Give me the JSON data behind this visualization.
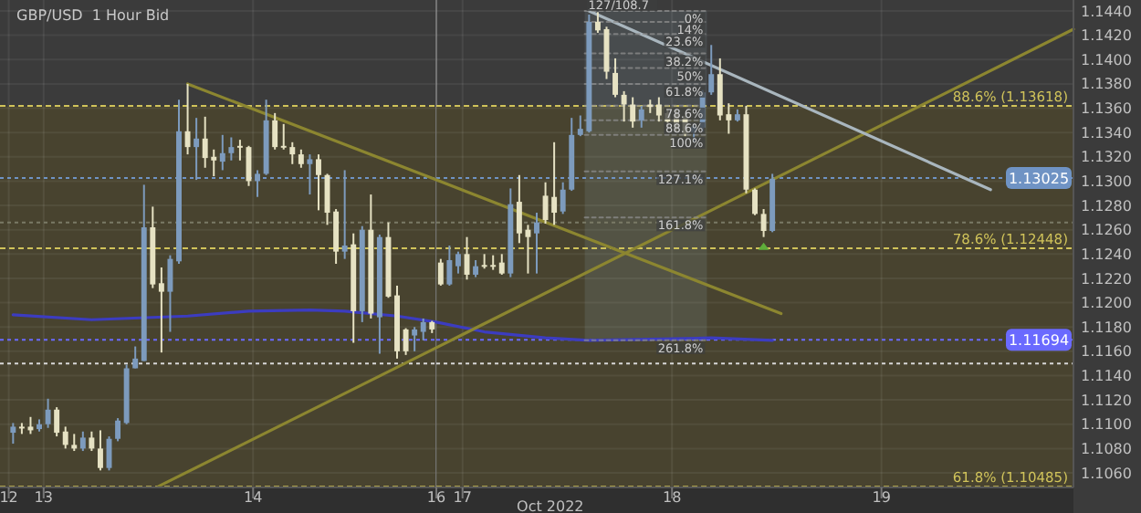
{
  "chart_data": [
    {
      "type": "candlestick",
      "title": "GBP/USD  1 Hour Bid",
      "x": [
        "2022-10-12T20:30",
        "2022-10-12T21:30",
        "2022-10-12T22:30",
        "2022-10-12T23:30",
        "2022-10-13T00:30",
        "2022-10-13T01:30",
        "2022-10-13T02:30",
        "2022-10-13T03:30",
        "2022-10-13T04:30",
        "2022-10-13T05:30",
        "2022-10-13T06:30",
        "2022-10-13T07:30",
        "2022-10-13T08:30",
        "2022-10-13T09:30",
        "2022-10-13T10:30",
        "2022-10-13T11:30",
        "2022-10-13T12:30",
        "2022-10-13T13:30",
        "2022-10-13T14:30",
        "2022-10-13T15:30",
        "2022-10-13T16:30",
        "2022-10-13T17:30",
        "2022-10-13T18:30",
        "2022-10-13T19:30",
        "2022-10-13T20:30",
        "2022-10-13T21:30",
        "2022-10-13T22:30",
        "2022-10-13T23:30",
        "2022-10-14T00:30",
        "2022-10-14T01:30",
        "2022-10-14T02:30",
        "2022-10-14T03:30",
        "2022-10-14T04:30",
        "2022-10-14T05:30",
        "2022-10-14T06:30",
        "2022-10-14T07:30",
        "2022-10-14T08:30",
        "2022-10-14T09:30",
        "2022-10-14T10:30",
        "2022-10-14T11:30",
        "2022-10-14T12:30",
        "2022-10-14T13:30",
        "2022-10-14T14:30",
        "2022-10-14T15:30",
        "2022-10-14T16:30",
        "2022-10-14T17:30",
        "2022-10-14T18:30",
        "2022-10-14T19:30",
        "2022-10-14T20:30"
      ],
      "ohlc": [
        [
          1.1093,
          1.1101,
          1.1084,
          1.1098
        ],
        [
          1.1098,
          1.1101,
          1.1092,
          1.1097
        ],
        [
          1.1098,
          1.1106,
          1.1092,
          1.1095
        ],
        [
          1.1096,
          1.1104,
          1.1094,
          1.11
        ],
        [
          1.11,
          1.1121,
          1.1097,
          1.1112
        ],
        [
          1.1112,
          1.1114,
          1.109,
          1.1093
        ],
        [
          1.1094,
          1.1098,
          1.108,
          1.1083
        ],
        [
          1.1083,
          1.1092,
          1.1078,
          1.108
        ],
        [
          1.108,
          1.1094,
          1.1078,
          1.1089
        ],
        [
          1.1089,
          1.1094,
          1.1078,
          1.108
        ],
        [
          1.108,
          1.1095,
          1.1062,
          1.1064
        ],
        [
          1.1064,
          1.109,
          1.1062,
          1.1088
        ],
        [
          1.1088,
          1.1105,
          1.1086,
          1.1103
        ],
        [
          1.1101,
          1.1149,
          1.11,
          1.1146
        ],
        [
          1.1146,
          1.1164,
          1.1146,
          1.1154
        ],
        [
          1.1152,
          1.1297,
          1.1152,
          1.1262
        ],
        [
          1.1262,
          1.1279,
          1.1212,
          1.1215
        ],
        [
          1.1216,
          1.1229,
          1.1159,
          1.1209
        ],
        [
          1.1209,
          1.1239,
          1.1176,
          1.1236
        ],
        [
          1.1234,
          1.1367,
          1.1232,
          1.1341
        ],
        [
          1.1341,
          1.138,
          1.1322,
          1.1328
        ],
        [
          1.1328,
          1.1352,
          1.1301,
          1.1335
        ],
        [
          1.1335,
          1.1353,
          1.1311,
          1.1319
        ],
        [
          1.132,
          1.1326,
          1.1304,
          1.1317
        ],
        [
          1.1316,
          1.1338,
          1.1309,
          1.1323
        ],
        [
          1.1323,
          1.1336,
          1.1317,
          1.1328
        ],
        [
          1.1329,
          1.1334,
          1.1317,
          1.1328
        ],
        [
          1.1328,
          1.1329,
          1.1296,
          1.13
        ],
        [
          1.13,
          1.1309,
          1.1287,
          1.1306
        ],
        [
          1.1306,
          1.1367,
          1.1305,
          1.135
        ],
        [
          1.135,
          1.1356,
          1.1326,
          1.1328
        ],
        [
          1.1329,
          1.1347,
          1.1326,
          1.1328
        ],
        [
          1.1328,
          1.1332,
          1.1314,
          1.1322
        ],
        [
          1.1322,
          1.1326,
          1.1311,
          1.1314
        ],
        [
          1.1314,
          1.1322,
          1.1289,
          1.1318
        ],
        [
          1.1318,
          1.1322,
          1.1276,
          1.1305
        ],
        [
          1.1305,
          1.1306,
          1.1264,
          1.1274
        ],
        [
          1.1275,
          1.1277,
          1.1232,
          1.1242
        ],
        [
          1.1242,
          1.1309,
          1.1236,
          1.1247
        ],
        [
          1.1248,
          1.1257,
          1.1167,
          1.1193
        ],
        [
          1.1193,
          1.1263,
          1.1184,
          1.126
        ],
        [
          1.126,
          1.1289,
          1.1187,
          1.1191
        ],
        [
          1.1188,
          1.1256,
          1.1158,
          1.1254
        ],
        [
          1.1254,
          1.1266,
          1.1204,
          1.1205
        ],
        [
          1.1206,
          1.1214,
          1.1154,
          1.116
        ],
        [
          1.1178,
          1.1179,
          1.1157,
          1.116
        ],
        [
          1.1173,
          1.118,
          1.116,
          1.1178
        ],
        [
          1.1176,
          1.1187,
          1.1169,
          1.1184
        ],
        [
          1.1184,
          1.1185,
          1.1175,
          1.1178
        ]
      ],
      "colors": [
        "#7d9bbd",
        "#e6e2c3",
        "#e6e2c3",
        "#7d9bbd",
        "#7d9bbd",
        "#e6e2c3",
        "#e6e2c3",
        "#e6e2c3",
        "#7d9bbd",
        "#e6e2c3",
        "#e6e2c3",
        "#7d9bbd",
        "#7d9bbd",
        "#7d9bbd",
        "#7d9bbd",
        "#7d9bbd",
        "#e6e2c3",
        "#e6e2c3",
        "#7d9bbd",
        "#7d9bbd",
        "#e6e2c3",
        "#7d9bbd",
        "#e6e2c3",
        "#e6e2c3",
        "#7d9bbd",
        "#7d9bbd",
        "#e6e2c3",
        "#e6e2c3",
        "#7d9bbd",
        "#7d9bbd",
        "#e6e2c3",
        "#e6e2c3",
        "#e6e2c3",
        "#e6e2c3",
        "#7d9bbd",
        "#e6e2c3",
        "#e6e2c3",
        "#e6e2c3",
        "#7d9bbd",
        "#e6e2c3",
        "#7d9bbd",
        "#e6e2c3",
        "#7d9bbd",
        "#e6e2c3",
        "#e6e2c3",
        "#e6e2c3",
        "#7d9bbd",
        "#7d9bbd",
        "#e6e2c3"
      ],
      "series": [
        {
          "type": "line",
          "color": "#3c3cc0",
          "x": [
            "2022-10-12T20:30",
            "2022-10-13T05:30",
            "2022-10-13T16:30",
            "2022-10-13T23:30",
            "2022-10-14T06:30",
            "2022-10-14T10:30",
            "2022-10-14T16:30",
            "2022-10-14T21:00"
          ],
          "values": [
            1.119,
            1.1186,
            1.1189,
            1.1193,
            1.1194,
            1.1193,
            1.1189,
            1.1184
          ]
        },
        {
          "type": "line",
          "color": "#8c8630",
          "x": [
            "2022-10-13T16:30",
            "2022-10-14T21:00"
          ],
          "values": [
            1.138,
            1.1301
          ]
        },
        {
          "type": "line",
          "color": "#8c8630",
          "x": [
            "2022-10-13T13:12",
            "2022-10-14T21:00"
          ],
          "values": [
            1.1049,
            1.1163
          ]
        }
      ],
      "xlim": [
        "2022-10-12T19:00",
        "2022-10-14T21:00"
      ],
      "xticks": [
        {
          "value": "2022-10-12T20:00",
          "label": "12"
        },
        {
          "value": "2022-10-13",
          "label": "13"
        },
        {
          "value": "2022-10-14",
          "label": "14"
        }
      ],
      "ylim": [
        1.1048,
        1.1449
      ],
      "yticks": [
        1.106,
        1.108,
        1.11,
        1.112,
        1.114,
        1.116,
        1.118,
        1.12,
        1.122,
        1.124,
        1.126,
        1.128,
        1.13,
        1.132,
        1.134,
        1.136,
        1.138,
        1.14,
        1.142,
        1.144
      ],
      "tick_labels": "x",
      "grid": true,
      "bands": [
        {
          "axis": "y",
          "from": 1.10485,
          "to": 1.13618,
          "color": "#48432f"
        }
      ],
      "ref_lines": [
        {
          "axis": "y",
          "value": 1.13618,
          "color": "#d0c35a",
          "line_style": "dashed"
        },
        {
          "axis": "y",
          "value": 1.12448,
          "color": "#d0c35a",
          "line_style": "dashed"
        },
        {
          "axis": "y",
          "value": 1.10485,
          "color": "#d0c35a",
          "line_style": "dashed"
        },
        {
          "axis": "y",
          "value": 1.13025,
          "color": "#6f93c4",
          "line_style": "dotted"
        },
        {
          "axis": "y",
          "value": 1.11694,
          "color": "#6a6aff",
          "line_style": "dotted"
        },
        {
          "axis": "y",
          "value": 1.1266,
          "color": "#7a7a66",
          "line_style": "dotted"
        },
        {
          "axis": "y",
          "value": 1.115,
          "color": "#d8d8d8",
          "line_style": "dotted"
        }
      ]
    },
    {
      "type": "candlestick",
      "xlabel": "Oct 2022",
      "x": [
        "2022-10-16T21:30",
        "2022-10-16T22:30",
        "2022-10-16T23:30",
        "2022-10-17T00:30",
        "2022-10-17T01:30",
        "2022-10-17T02:30",
        "2022-10-17T03:30",
        "2022-10-17T04:30",
        "2022-10-17T05:30",
        "2022-10-17T06:30",
        "2022-10-17T07:30",
        "2022-10-17T08:30",
        "2022-10-17T09:30",
        "2022-10-17T10:30",
        "2022-10-17T11:30",
        "2022-10-17T12:30",
        "2022-10-17T13:30",
        "2022-10-17T14:30",
        "2022-10-17T15:30",
        "2022-10-17T16:30",
        "2022-10-17T17:30",
        "2022-10-17T18:30",
        "2022-10-17T19:30",
        "2022-10-17T20:30",
        "2022-10-17T21:30",
        "2022-10-17T22:30",
        "2022-10-17T23:30",
        "2022-10-18T00:30",
        "2022-10-18T01:30",
        "2022-10-18T02:30",
        "2022-10-18T03:30",
        "2022-10-18T04:30",
        "2022-10-18T05:30",
        "2022-10-18T06:30",
        "2022-10-18T07:30",
        "2022-10-18T08:30",
        "2022-10-18T09:30",
        "2022-10-18T10:30",
        "2022-10-18T11:30"
      ],
      "ohlc": [
        [
          1.1233,
          1.1236,
          1.1214,
          1.1215
        ],
        [
          1.1215,
          1.1247,
          1.1214,
          1.1235
        ],
        [
          1.123,
          1.1242,
          1.1224,
          1.124
        ],
        [
          1.124,
          1.1254,
          1.1219,
          1.1223
        ],
        [
          1.1223,
          1.1235,
          1.1221,
          1.123
        ],
        [
          1.1231,
          1.124,
          1.1228,
          1.123
        ],
        [
          1.1231,
          1.1239,
          1.1227,
          1.123
        ],
        [
          1.1233,
          1.124,
          1.1223,
          1.1224
        ],
        [
          1.1224,
          1.1294,
          1.1221,
          1.1281
        ],
        [
          1.1283,
          1.1305,
          1.1249,
          1.1257
        ],
        [
          1.126,
          1.1264,
          1.1224,
          1.1254
        ],
        [
          1.1257,
          1.1274,
          1.1224,
          1.1266
        ],
        [
          1.1288,
          1.1299,
          1.1265,
          1.1268
        ],
        [
          1.1287,
          1.1332,
          1.1264,
          1.1274
        ],
        [
          1.1275,
          1.1299,
          1.1273,
          1.1293
        ],
        [
          1.1293,
          1.1352,
          1.1292,
          1.1338
        ],
        [
          1.1338,
          1.1354,
          1.1337,
          1.1343
        ],
        [
          1.1341,
          1.1437,
          1.134,
          1.1431
        ],
        [
          1.1431,
          1.1439,
          1.1422,
          1.1424
        ],
        [
          1.1425,
          1.1427,
          1.1384,
          1.139
        ],
        [
          1.1389,
          1.1401,
          1.1369,
          1.1371
        ],
        [
          1.1371,
          1.1374,
          1.1349,
          1.1363
        ],
        [
          1.1363,
          1.1369,
          1.1344,
          1.1349
        ],
        [
          1.135,
          1.1362,
          1.1344,
          1.1359
        ],
        [
          1.1363,
          1.1367,
          1.1356,
          1.1361
        ],
        [
          1.1363,
          1.1369,
          1.1349,
          1.1354
        ],
        [
          1.1356,
          1.1359,
          1.1344,
          1.1349
        ],
        [
          1.1355,
          1.1359,
          1.1341,
          1.1343
        ],
        [
          1.1352,
          1.1354,
          1.1337,
          1.1339
        ],
        [
          1.134,
          1.1347,
          1.1332,
          1.1345
        ],
        [
          1.1344,
          1.1375,
          1.1341,
          1.1373
        ],
        [
          1.1373,
          1.1412,
          1.1371,
          1.1388
        ],
        [
          1.1388,
          1.1401,
          1.135,
          1.1354
        ],
        [
          1.1355,
          1.1364,
          1.1339,
          1.135
        ],
        [
          1.135,
          1.1359,
          1.1349,
          1.1355
        ],
        [
          1.1355,
          1.1362,
          1.129,
          1.1293
        ],
        [
          1.1293,
          1.1294,
          1.1272,
          1.1273
        ],
        [
          1.1273,
          1.1277,
          1.1254,
          1.1259
        ],
        [
          1.1259,
          1.1306,
          1.1258,
          1.1302
        ]
      ],
      "colors": [
        "#e6e2c3",
        "#7d9bbd",
        "#7d9bbd",
        "#e6e2c3",
        "#7d9bbd",
        "#e6e2c3",
        "#e6e2c3",
        "#e6e2c3",
        "#7d9bbd",
        "#e6e2c3",
        "#e6e2c3",
        "#7d9bbd",
        "#e6e2c3",
        "#e6e2c3",
        "#7d9bbd",
        "#7d9bbd",
        "#7d9bbd",
        "#7d9bbd",
        "#e6e2c3",
        "#e6e2c3",
        "#e6e2c3",
        "#e6e2c3",
        "#e6e2c3",
        "#7d9bbd",
        "#e6e2c3",
        "#e6e2c3",
        "#e6e2c3",
        "#e6e2c3",
        "#e6e2c3",
        "#7d9bbd",
        "#7d9bbd",
        "#7d9bbd",
        "#e6e2c3",
        "#e6e2c3",
        "#7d9bbd",
        "#e6e2c3",
        "#e6e2c3",
        "#e6e2c3",
        "#7d9bbd"
      ],
      "series": [
        {
          "type": "line",
          "color": "#3c3cc0",
          "x": [
            "2022-10-16T21:00",
            "2022-10-17T02:30",
            "2022-10-17T09:30",
            "2022-10-17T14:30",
            "2022-10-17T21:30",
            "2022-10-18T04:30",
            "2022-10-18T11:30"
          ],
          "values": [
            1.1184,
            1.1176,
            1.1171,
            1.1169,
            1.117,
            1.1171,
            1.1169
          ]
        },
        {
          "type": "line",
          "color": "#8c8630",
          "x": [
            "2022-10-16T21:00",
            "2022-10-18T12:30"
          ],
          "values": [
            1.1301,
            1.1191
          ]
        },
        {
          "type": "line",
          "color": "#8c8630",
          "x": [
            "2022-10-16T21:00",
            "2022-10-19T22:00"
          ],
          "values": [
            1.1163,
            1.1425
          ]
        },
        {
          "type": "line",
          "color": "#a9b6be",
          "x": [
            "2022-10-17T14:30",
            "2022-10-19T12:30"
          ],
          "values": [
            1.144,
            1.1293
          ]
        },
        {
          "type": "line",
          "color": "#8e8e8e",
          "line_style": "dotted",
          "x": [
            "2022-10-17T14:00",
            "2022-10-18T04:00"
          ],
          "values": [
            1.144,
            1.144
          ]
        },
        {
          "type": "line",
          "color": "#8e8e8e",
          "line_style": "dotted",
          "x": [
            "2022-10-17T14:00",
            "2022-10-18T04:00"
          ],
          "values": [
            1.1431,
            1.1431
          ]
        },
        {
          "type": "line",
          "color": "#8e8e8e",
          "line_style": "dotted",
          "x": [
            "2022-10-17T14:00",
            "2022-10-18T04:00"
          ],
          "values": [
            1.1421,
            1.1421
          ]
        },
        {
          "type": "line",
          "color": "#8e8e8e",
          "line_style": "dotted",
          "x": [
            "2022-10-17T14:00",
            "2022-10-18T04:00"
          ],
          "values": [
            1.1405,
            1.1405
          ]
        },
        {
          "type": "line",
          "color": "#8e8e8e",
          "line_style": "dotted",
          "x": [
            "2022-10-17T14:00",
            "2022-10-18T04:00"
          ],
          "values": [
            1.1393,
            1.1393
          ]
        },
        {
          "type": "line",
          "color": "#8e8e8e",
          "line_style": "dotted",
          "x": [
            "2022-10-17T14:00",
            "2022-10-18T04:00"
          ],
          "values": [
            1.138,
            1.138
          ]
        },
        {
          "type": "line",
          "color": "#8e8e8e",
          "line_style": "dotted",
          "x": [
            "2022-10-17T14:00",
            "2022-10-18T04:00"
          ],
          "values": [
            1.1362,
            1.1362
          ]
        },
        {
          "type": "line",
          "color": "#8e8e8e",
          "line_style": "dotted",
          "x": [
            "2022-10-17T14:00",
            "2022-10-18T04:00"
          ],
          "values": [
            1.135,
            1.135
          ]
        },
        {
          "type": "line",
          "color": "#8e8e8e",
          "line_style": "dotted",
          "x": [
            "2022-10-17T14:00",
            "2022-10-18T04:00"
          ],
          "values": [
            1.1338,
            1.1338
          ]
        },
        {
          "type": "line",
          "color": "#8e8e8e",
          "line_style": "dotted",
          "x": [
            "2022-10-17T14:00",
            "2022-10-18T04:00"
          ],
          "values": [
            1.1308,
            1.1308
          ]
        },
        {
          "type": "line",
          "color": "#8e8e8e",
          "line_style": "dotted",
          "x": [
            "2022-10-17T14:00",
            "2022-10-18T04:00"
          ],
          "values": [
            1.127,
            1.127
          ]
        },
        {
          "type": "line",
          "color": "#8e8e8e",
          "line_style": "dotted",
          "x": [
            "2022-10-17T14:00",
            "2022-10-18T04:00"
          ],
          "values": [
            1.1169,
            1.1169
          ]
        }
      ],
      "xlim": [
        "2022-10-16T21:00",
        "2022-10-19T22:00"
      ],
      "xticks": [
        {
          "value": "2022-10-16T21:00",
          "label": "16"
        },
        {
          "value": "2022-10-17",
          "label": "17"
        },
        {
          "value": "2022-10-18",
          "label": "18"
        },
        {
          "value": "2022-10-19",
          "label": "19"
        }
      ],
      "ylim": [
        1.1048,
        1.1449
      ],
      "yticks": [
        {
          "value": 1.106,
          "label": "1.1060"
        },
        {
          "value": 1.108,
          "label": "1.1080"
        },
        {
          "value": 1.11,
          "label": "1.1100"
        },
        {
          "value": 1.112,
          "label": "1.1120"
        },
        {
          "value": 1.114,
          "label": "1.1140"
        },
        {
          "value": 1.116,
          "label": "1.1160"
        },
        {
          "value": 1.118,
          "label": "1.1180"
        },
        {
          "value": 1.12,
          "label": "1.1200"
        },
        {
          "value": 1.122,
          "label": "1.1220"
        },
        {
          "value": 1.124,
          "label": "1.1240"
        },
        {
          "value": 1.126,
          "label": "1.1260"
        },
        {
          "value": 1.128,
          "label": "1.1280"
        },
        {
          "value": 1.13,
          "label": "1.1300"
        },
        {
          "value": 1.132,
          "label": "1.1320"
        },
        {
          "value": 1.134,
          "label": "1.1340"
        },
        {
          "value": 1.136,
          "label": "1.1360"
        },
        {
          "value": 1.138,
          "label": "1.1380"
        },
        {
          "value": 1.14,
          "label": "1.1400"
        },
        {
          "value": 1.142,
          "label": "1.1420"
        },
        {
          "value": 1.144,
          "label": "1.1440"
        }
      ],
      "grid": true,
      "bands": [
        {
          "axis": "y",
          "from": 1.10485,
          "to": 1.13618,
          "color": "#48432f"
        }
      ],
      "ref_lines": [
        {
          "axis": "y",
          "value": 1.13618,
          "label": "88.6% (1.13618)",
          "color": "#d0c35a",
          "line_style": "dashed"
        },
        {
          "axis": "y",
          "value": 1.12448,
          "label": "78.6% (1.12448)",
          "color": "#d0c35a",
          "line_style": "dashed"
        },
        {
          "axis": "y",
          "value": 1.10485,
          "label": "61.8% (1.10485)",
          "color": "#d0c35a",
          "line_style": "dashed"
        },
        {
          "axis": "y",
          "value": 1.13025,
          "label": "1.13025",
          "color": "#6f93c4",
          "line_style": "dotted"
        },
        {
          "axis": "y",
          "value": 1.11694,
          "label": "1.11694",
          "color": "#6a6aff",
          "line_style": "dotted"
        },
        {
          "axis": "y",
          "value": 1.1266,
          "color": "#7a7a66",
          "line_style": "dotted"
        },
        {
          "axis": "y",
          "value": 1.115,
          "color": "#d8d8d8",
          "line_style": "dotted"
        }
      ],
      "annotations": [
        {
          "text": "127/108.7",
          "x": "2022-10-17T14:00",
          "y": 1.144
        },
        {
          "text": "0%",
          "x": "2022-10-18T04:00",
          "y": 1.144
        },
        {
          "text": "14%",
          "x": "2022-10-18T04:00",
          "y": 1.1431
        },
        {
          "text": "23.6%",
          "x": "2022-10-18T04:00",
          "y": 1.1421
        },
        {
          "text": "38.2%",
          "x": "2022-10-18T04:00",
          "y": 1.1405
        },
        {
          "text": "50%",
          "x": "2022-10-18T04:00",
          "y": 1.1393
        },
        {
          "text": "61.8%",
          "x": "2022-10-18T04:00",
          "y": 1.138
        },
        {
          "text": "78.6%",
          "x": "2022-10-18T04:00",
          "y": 1.1362
        },
        {
          "text": "88.6%",
          "x": "2022-10-18T04:00",
          "y": 1.135
        },
        {
          "text": "100%",
          "x": "2022-10-18T04:00",
          "y": 1.1338
        },
        {
          "text": "127.1%",
          "x": "2022-10-18T04:00",
          "y": 1.1308
        },
        {
          "text": "161.8%",
          "x": "2022-10-18T04:00",
          "y": 1.127
        },
        {
          "text": "261.8%",
          "x": "2022-10-18T04:00",
          "y": 1.1169
        }
      ]
    }
  ]
}
